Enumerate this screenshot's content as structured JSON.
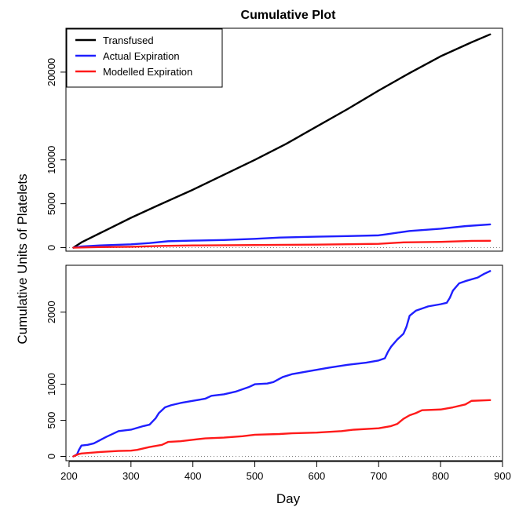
{
  "chart_data": {
    "type": "line",
    "title": "Cumulative Plot",
    "xlabel": "Day",
    "ylabel": "Cumulative Units of Platelets",
    "xlim": [
      195,
      900
    ],
    "xticks": [
      200,
      300,
      400,
      500,
      600,
      700,
      800,
      900
    ],
    "legend": {
      "placement": "top-left",
      "entries": [
        "Transfused",
        "Actual Expiration",
        "Modelled Expiration"
      ]
    },
    "colors": {
      "Transfused": "#000000",
      "Actual Expiration": "#1f1fff",
      "Modelled Expiration": "#ff1a1a",
      "zero_line": "#808080"
    },
    "panels": [
      {
        "id": "top",
        "ylim": [
          -400,
          25000
        ],
        "yticks": [
          0,
          5000,
          10000,
          20000
        ],
        "zero_line": true,
        "legend": true,
        "series": [
          {
            "name": "Transfused",
            "x": [
              207,
              220,
              260,
              300,
              340,
              400,
              450,
              500,
              550,
              600,
              650,
              700,
              750,
              800,
              850,
              880
            ],
            "y": [
              0,
              600,
              2000,
              3400,
              4700,
              6600,
              8300,
              10000,
              11800,
              13800,
              15800,
              17900,
              19900,
              21800,
              23400,
              24300
            ]
          },
          {
            "name": "Actual Expiration",
            "x": [
              207,
              220,
              250,
              300,
              330,
              360,
              400,
              450,
              500,
              540,
              600,
              650,
              700,
              710,
              750,
              800,
              840,
              880
            ],
            "y": [
              0,
              130,
              250,
              380,
              520,
              730,
              800,
              870,
              1000,
              1150,
              1250,
              1320,
              1400,
              1500,
              1900,
              2150,
              2450,
              2650
            ]
          },
          {
            "name": "Modelled Expiration",
            "x": [
              207,
              250,
              300,
              350,
              400,
              500,
              600,
              700,
              740,
              800,
              850,
              880
            ],
            "y": [
              0,
              60,
              100,
              200,
              250,
              300,
              340,
              430,
              600,
              660,
              770,
              780
            ]
          }
        ]
      },
      {
        "id": "bottom",
        "ylim": [
          -60,
          2650
        ],
        "yticks": [
          0,
          500,
          1000,
          2000
        ],
        "zero_line": true,
        "legend": false,
        "series": [
          {
            "name": "Actual Expiration",
            "x": [
              207,
              213,
              216,
              220,
              230,
              240,
              260,
              280,
              300,
              320,
              330,
              340,
              345,
              355,
              365,
              380,
              400,
              420,
              430,
              450,
              470,
              490,
              500,
              520,
              530,
              545,
              560,
              580,
              600,
              620,
              650,
              680,
              700,
              710,
              715,
              720,
              730,
              740,
              745,
              750,
              760,
              780,
              800,
              810,
              815,
              820,
              830,
              840,
              860,
              870,
              880
            ],
            "y": [
              0,
              30,
              90,
              150,
              160,
              180,
              270,
              350,
              370,
              420,
              440,
              530,
              600,
              680,
              710,
              740,
              770,
              800,
              840,
              860,
              900,
              960,
              1000,
              1010,
              1030,
              1100,
              1140,
              1170,
              1200,
              1230,
              1270,
              1300,
              1330,
              1360,
              1450,
              1520,
              1620,
              1700,
              1800,
              1950,
              2020,
              2080,
              2110,
              2130,
              2200,
              2300,
              2400,
              2430,
              2480,
              2530,
              2570
            ]
          },
          {
            "name": "Modelled Expiration",
            "x": [
              207,
              215,
              220,
              250,
              280,
              300,
              310,
              330,
              350,
              360,
              380,
              400,
              420,
              450,
              480,
              500,
              540,
              560,
              600,
              640,
              660,
              700,
              720,
              730,
              740,
              750,
              760,
              770,
              800,
              820,
              840,
              850,
              880
            ],
            "y": [
              0,
              30,
              40,
              60,
              75,
              80,
              90,
              130,
              160,
              200,
              210,
              230,
              250,
              260,
              280,
              300,
              310,
              320,
              330,
              350,
              370,
              390,
              420,
              450,
              520,
              570,
              600,
              640,
              650,
              680,
              720,
              770,
              780
            ]
          }
        ]
      }
    ]
  }
}
